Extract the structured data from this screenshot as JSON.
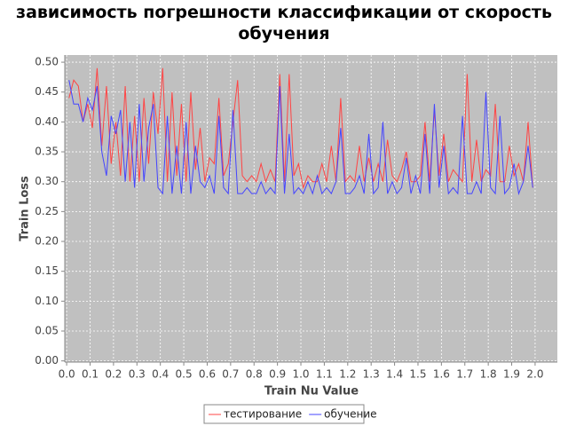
{
  "chart_data": {
    "type": "line",
    "title": "зависимость погрешности классификации от скорость обучения",
    "x_label": "Train Nu Value",
    "y_label": "Train Loss",
    "x": [
      0.01,
      0.03,
      0.05,
      0.07,
      0.09,
      0.11,
      0.13,
      0.15,
      0.17,
      0.19,
      0.21,
      0.23,
      0.25,
      0.27,
      0.29,
      0.31,
      0.33,
      0.35,
      0.37,
      0.39,
      0.41,
      0.43,
      0.45,
      0.47,
      0.49,
      0.51,
      0.53,
      0.55,
      0.57,
      0.59,
      0.61,
      0.63,
      0.65,
      0.67,
      0.69,
      0.71,
      0.73,
      0.75,
      0.77,
      0.79,
      0.81,
      0.83,
      0.85,
      0.87,
      0.89,
      0.91,
      0.93,
      0.95,
      0.97,
      0.99,
      1.01,
      1.03,
      1.05,
      1.07,
      1.09,
      1.11,
      1.13,
      1.15,
      1.17,
      1.19,
      1.21,
      1.23,
      1.25,
      1.27,
      1.29,
      1.31,
      1.33,
      1.35,
      1.37,
      1.39,
      1.41,
      1.43,
      1.45,
      1.47,
      1.49,
      1.51,
      1.53,
      1.55,
      1.57,
      1.59,
      1.61,
      1.63,
      1.65,
      1.67,
      1.69,
      1.71,
      1.73,
      1.75,
      1.77,
      1.79,
      1.81,
      1.83,
      1.85,
      1.87,
      1.89,
      1.91,
      1.93,
      1.95,
      1.97,
      1.99
    ],
    "series": [
      {
        "name": "тестирование",
        "color": "#ff4444",
        "values": [
          0.44,
          0.47,
          0.46,
          0.4,
          0.43,
          0.39,
          0.49,
          0.36,
          0.46,
          0.33,
          0.4,
          0.31,
          0.46,
          0.3,
          0.41,
          0.3,
          0.44,
          0.33,
          0.45,
          0.38,
          0.49,
          0.3,
          0.45,
          0.31,
          0.43,
          0.3,
          0.45,
          0.32,
          0.39,
          0.3,
          0.34,
          0.33,
          0.44,
          0.31,
          0.33,
          0.4,
          0.47,
          0.31,
          0.3,
          0.31,
          0.3,
          0.33,
          0.3,
          0.32,
          0.3,
          0.48,
          0.3,
          0.48,
          0.31,
          0.33,
          0.29,
          0.31,
          0.3,
          0.3,
          0.33,
          0.3,
          0.36,
          0.3,
          0.44,
          0.3,
          0.31,
          0.3,
          0.36,
          0.3,
          0.34,
          0.3,
          0.33,
          0.3,
          0.37,
          0.31,
          0.3,
          0.32,
          0.35,
          0.3,
          0.3,
          0.31,
          0.4,
          0.3,
          0.42,
          0.31,
          0.38,
          0.3,
          0.32,
          0.31,
          0.3,
          0.48,
          0.3,
          0.37,
          0.3,
          0.32,
          0.31,
          0.43,
          0.3,
          0.3,
          0.36,
          0.31,
          0.33,
          0.3,
          0.4,
          0.29
        ]
      },
      {
        "name": "обучение",
        "color": "#4444ff",
        "values": [
          0.47,
          0.43,
          0.43,
          0.4,
          0.44,
          0.42,
          0.46,
          0.35,
          0.31,
          0.41,
          0.38,
          0.42,
          0.3,
          0.4,
          0.29,
          0.43,
          0.3,
          0.39,
          0.43,
          0.29,
          0.28,
          0.41,
          0.28,
          0.36,
          0.28,
          0.4,
          0.28,
          0.36,
          0.3,
          0.29,
          0.31,
          0.28,
          0.41,
          0.29,
          0.28,
          0.42,
          0.28,
          0.28,
          0.29,
          0.28,
          0.28,
          0.3,
          0.28,
          0.29,
          0.28,
          0.46,
          0.28,
          0.38,
          0.28,
          0.29,
          0.28,
          0.3,
          0.28,
          0.31,
          0.28,
          0.29,
          0.28,
          0.3,
          0.39,
          0.28,
          0.28,
          0.29,
          0.31,
          0.28,
          0.38,
          0.28,
          0.29,
          0.4,
          0.28,
          0.3,
          0.28,
          0.29,
          0.34,
          0.28,
          0.31,
          0.28,
          0.38,
          0.28,
          0.43,
          0.29,
          0.36,
          0.28,
          0.29,
          0.28,
          0.41,
          0.28,
          0.28,
          0.3,
          0.28,
          0.45,
          0.29,
          0.28,
          0.41,
          0.28,
          0.29,
          0.33,
          0.28,
          0.3,
          0.36,
          0.29
        ]
      }
    ],
    "xlim": [
      -0.008,
      2.095
    ],
    "xticks": [
      {
        "value": 0,
        "label": "0.0"
      },
      0.1,
      0.2,
      0.3,
      0.4,
      0.5,
      0.6,
      0.7,
      0.8,
      0.9,
      {
        "value": 1,
        "label": "1.0"
      },
      1.1,
      1.2,
      1.3,
      1.4,
      1.5,
      1.6,
      1.7,
      1.8,
      1.9,
      {
        "value": 2,
        "label": "2.0"
      }
    ],
    "ylim": [
      -0.002,
      0.512
    ],
    "yticks": [
      {
        "value": 0,
        "label": "0.00"
      },
      0.05,
      {
        "value": 0.1,
        "label": "0.10"
      },
      0.15,
      {
        "value": 0.2,
        "label": "0.20"
      },
      0.25,
      {
        "value": 0.3,
        "label": "0.30"
      },
      0.35,
      {
        "value": 0.4,
        "label": "0.40"
      },
      0.45,
      {
        "value": 0.5,
        "label": "0.50"
      }
    ],
    "grid": true,
    "legend": "bottom"
  }
}
